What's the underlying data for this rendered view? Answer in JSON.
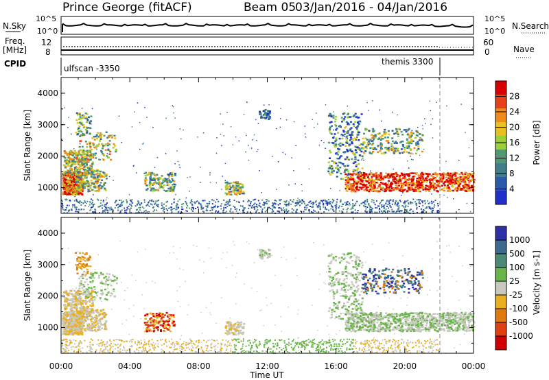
{
  "header": {
    "station": "Prince George (fitACF)",
    "beam": "Beam 05",
    "date_range": "03/Jan/2016 - 04/Jan/2016"
  },
  "top_panels": {
    "nsky_label": "N.Sky",
    "nsearch_label": "N.Search",
    "noise_ticks": [
      "10^5",
      "10^0"
    ],
    "freq_label_1": "Freq.",
    "freq_label_2": "[MHz]",
    "freq_ticks": [
      "12",
      "8"
    ],
    "nave_label": "Nave",
    "nave_ticks": [
      "60",
      "0"
    ],
    "cpid_label": "CPID",
    "cpid_1": "ulfscan -3350",
    "cpid_2": "themis 3300"
  },
  "colors": {
    "power_scale": [
      "#1f2fc8",
      "#2a5aa8",
      "#3f7f8c",
      "#4f9a70",
      "#9ccf3a",
      "#e8c020",
      "#f08a1c",
      "#e84018",
      "#d80000"
    ],
    "velocity_scale": [
      "#2b2fa8",
      "#3d6a8f",
      "#4c8a78",
      "#6ab54a",
      "#c8c8c0",
      "#e8b020",
      "#e07a10",
      "#e04010",
      "#d00000"
    ]
  },
  "chart_data": [
    {
      "type": "heatmap",
      "name": "power",
      "xlabel": "",
      "ylabel": "Slant Range [km]",
      "ylim": [
        180,
        4500
      ],
      "y_ticks": [
        "1000",
        "2000",
        "3000",
        "4000"
      ],
      "colorbar_label": "Power [dB]",
      "colorbar_ticks": [
        "4",
        "8",
        "12",
        "16",
        "20",
        "24",
        "28"
      ],
      "zlim": [
        0,
        30
      ]
    },
    {
      "type": "heatmap",
      "name": "velocity",
      "xlabel": "Time UT",
      "ylabel": "Slant Range [km]",
      "ylim": [
        180,
        4500
      ],
      "y_ticks": [
        "1000",
        "2000",
        "3000",
        "4000"
      ],
      "colorbar_label": "Velocity [m s-1]",
      "colorbar_ticks": [
        "1000",
        "500",
        "100",
        "25",
        "-25",
        "-100",
        "-500",
        "-1000"
      ],
      "x_ticks": [
        "00:00",
        "04:00",
        "08:00",
        "12:00",
        "16:00",
        "20:00",
        "00:00"
      ],
      "xlim_hours": [
        0,
        24
      ]
    }
  ]
}
